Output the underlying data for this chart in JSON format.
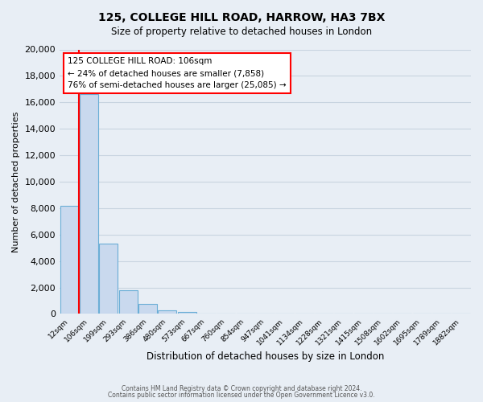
{
  "title": "125, COLLEGE HILL ROAD, HARROW, HA3 7BX",
  "subtitle": "Size of property relative to detached houses in London",
  "xlabel": "Distribution of detached houses by size in London",
  "ylabel": "Number of detached properties",
  "bar_labels": [
    "12sqm",
    "106sqm",
    "199sqm",
    "293sqm",
    "386sqm",
    "480sqm",
    "573sqm",
    "667sqm",
    "760sqm",
    "854sqm",
    "947sqm",
    "1041sqm",
    "1134sqm",
    "1228sqm",
    "1321sqm",
    "1415sqm",
    "1508sqm",
    "1602sqm",
    "1695sqm",
    "1789sqm",
    "1882sqm"
  ],
  "bar_values": [
    8200,
    16600,
    5300,
    1800,
    750,
    250,
    120,
    50,
    10,
    5,
    2,
    1,
    0,
    0,
    0,
    0,
    0,
    0,
    0,
    0,
    0
  ],
  "bar_color": "#c9d9ee",
  "bar_edge_color": "#6baed6",
  "red_line_index": 1,
  "annotation_text_line1": "125 COLLEGE HILL ROAD: 106sqm",
  "annotation_text_line2": "← 24% of detached houses are smaller (7,858)",
  "annotation_text_line3": "76% of semi-detached houses are larger (25,085) →",
  "annotation_box_color": "white",
  "annotation_box_edge_color": "red",
  "ylim": [
    0,
    20000
  ],
  "yticks": [
    0,
    2000,
    4000,
    6000,
    8000,
    10000,
    12000,
    14000,
    16000,
    18000,
    20000
  ],
  "footer_line1": "Contains HM Land Registry data © Crown copyright and database right 2024.",
  "footer_line2": "Contains public sector information licensed under the Open Government Licence v3.0.",
  "bg_color": "#e8eef5",
  "plot_bg_color": "#e8eef5",
  "grid_color": "#c8d4e0"
}
